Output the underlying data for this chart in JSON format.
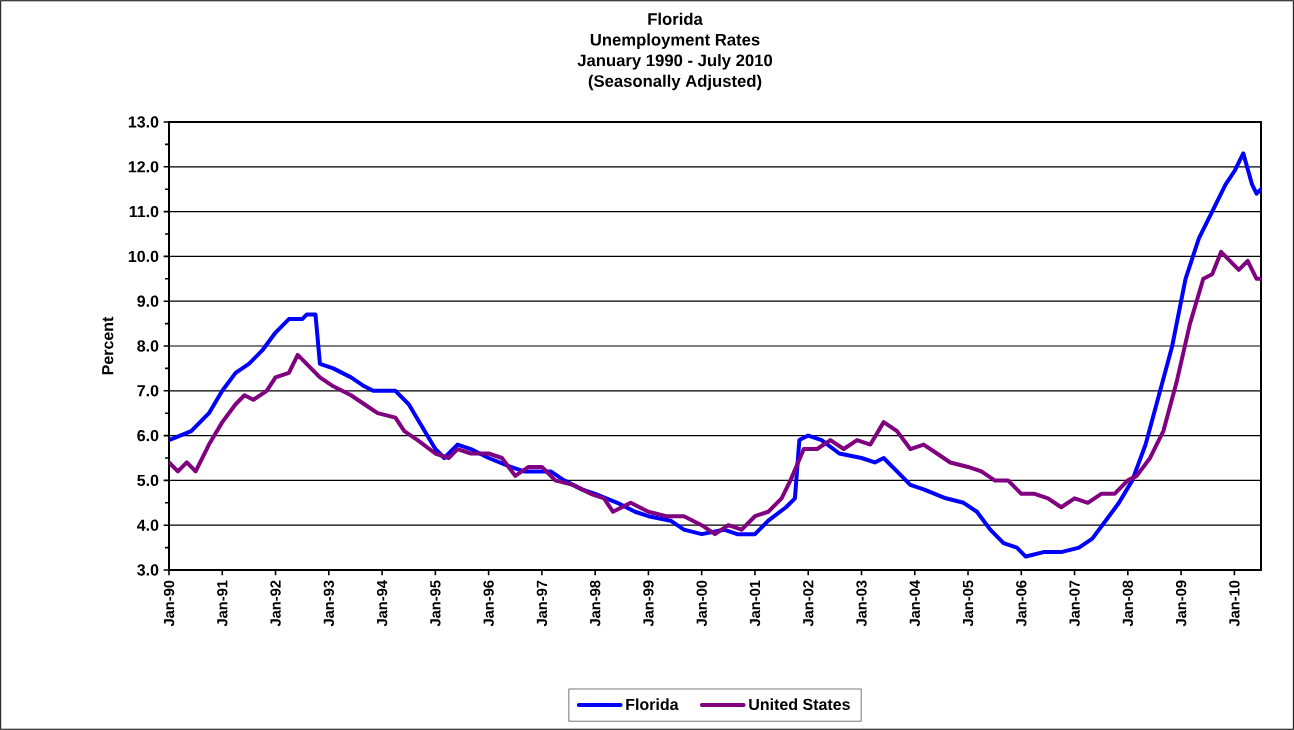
{
  "chart_data": {
    "type": "line",
    "title": "Florida",
    "subtitle": "Unemployment Rates",
    "annotations": [
      "January 1990 - July 2010",
      "(Seasonally Adjusted)"
    ],
    "ylabel": "Percent",
    "xlim": [
      "1990-01",
      "2010-07"
    ],
    "xticks": [
      {
        "value": "1990-01",
        "label": "Jan-90"
      },
      {
        "value": "1991-01",
        "label": "Jan-91"
      },
      {
        "value": "1992-01",
        "label": "Jan-92"
      },
      {
        "value": "1993-01",
        "label": "Jan-93"
      },
      {
        "value": "1994-01",
        "label": "Jan-94"
      },
      {
        "value": "1995-01",
        "label": "Jan-95"
      },
      {
        "value": "1996-01",
        "label": "Jan-96"
      },
      {
        "value": "1997-01",
        "label": "Jan-97"
      },
      {
        "value": "1998-01",
        "label": "Jan-98"
      },
      {
        "value": "1999-01",
        "label": "Jan-99"
      },
      {
        "value": "2000-01",
        "label": "Jan-00"
      },
      {
        "value": "2001-01",
        "label": "Jan-01"
      },
      {
        "value": "2002-01",
        "label": "Jan-02"
      },
      {
        "value": "2003-01",
        "label": "Jan-03"
      },
      {
        "value": "2004-01",
        "label": "Jan-04"
      },
      {
        "value": "2005-01",
        "label": "Jan-05"
      },
      {
        "value": "2006-01",
        "label": "Jan-06"
      },
      {
        "value": "2007-01",
        "label": "Jan-07"
      },
      {
        "value": "2008-01",
        "label": "Jan-08"
      },
      {
        "value": "2009-01",
        "label": "Jan-09"
      },
      {
        "value": "2010-01",
        "label": "Jan-10"
      }
    ],
    "ylim": [
      3,
      13
    ],
    "yticks": [
      {
        "value": 3,
        "label": "3.0"
      },
      {
        "value": 4,
        "label": "4.0"
      },
      {
        "value": 5,
        "label": "5.0"
      },
      {
        "value": 6,
        "label": "6.0"
      },
      {
        "value": 7,
        "label": "7.0"
      },
      {
        "value": 8,
        "label": "8.0"
      },
      {
        "value": 9,
        "label": "9.0"
      },
      {
        "value": 10,
        "label": "10.0"
      },
      {
        "value": 11,
        "label": "11.0"
      },
      {
        "value": 12,
        "label": "12.0"
      },
      {
        "value": 13,
        "label": "13.0"
      }
    ],
    "grid": "y",
    "legend": "bottom",
    "marker": "none",
    "line_style": "solid",
    "series": [
      {
        "name": "Florida",
        "color": "#0000ff",
        "x": [
          "1990-01",
          "1990-06",
          "1990-10",
          "1991-01",
          "1991-04",
          "1991-07",
          "1991-10",
          "1992-01",
          "1992-04",
          "1992-07",
          "1992-08",
          "1992-10",
          "1992-11",
          "1993-02",
          "1993-06",
          "1993-09",
          "1993-11",
          "1994-04",
          "1994-07",
          "1994-10",
          "1995-01",
          "1995-03",
          "1995-06",
          "1995-09",
          "1996-01",
          "1996-06",
          "1996-09",
          "1997-03",
          "1997-06",
          "1997-10",
          "1998-01",
          "1998-06",
          "1998-10",
          "1999-01",
          "1999-06",
          "1999-09",
          "2000-01",
          "2000-06",
          "2000-09",
          "2001-01",
          "2001-04",
          "2001-08",
          "2001-10",
          "2001-11",
          "2002-01",
          "2002-04",
          "2002-08",
          "2003-01",
          "2003-04",
          "2003-06",
          "2003-09",
          "2003-12",
          "2004-03",
          "2004-08",
          "2004-12",
          "2005-03",
          "2005-06",
          "2005-09",
          "2005-12",
          "2006-02",
          "2006-06",
          "2006-10",
          "2007-02",
          "2007-05",
          "2007-08",
          "2007-11",
          "2008-02",
          "2008-05",
          "2008-08",
          "2008-11",
          "2009-02",
          "2009-05",
          "2009-08",
          "2009-11",
          "2010-01",
          "2010-03",
          "2010-05",
          "2010-06",
          "2010-07"
        ],
        "values": [
          5.9,
          6.1,
          6.5,
          7.0,
          7.4,
          7.6,
          7.9,
          8.3,
          8.6,
          8.6,
          8.7,
          8.7,
          7.6,
          7.5,
          7.3,
          7.1,
          7.0,
          7.0,
          6.7,
          6.2,
          5.7,
          5.5,
          5.8,
          5.7,
          5.5,
          5.3,
          5.2,
          5.2,
          5.0,
          4.8,
          4.7,
          4.5,
          4.3,
          4.2,
          4.1,
          3.9,
          3.8,
          3.9,
          3.8,
          3.8,
          4.1,
          4.4,
          4.6,
          5.9,
          6.0,
          5.9,
          5.6,
          5.5,
          5.4,
          5.5,
          5.2,
          4.9,
          4.8,
          4.6,
          4.5,
          4.3,
          3.9,
          3.6,
          3.5,
          3.3,
          3.4,
          3.4,
          3.5,
          3.7,
          4.1,
          4.5,
          5.0,
          5.8,
          6.9,
          8.0,
          9.5,
          10.4,
          11.0,
          11.6,
          11.9,
          12.3,
          11.6,
          11.4,
          11.5
        ]
      },
      {
        "name": "United States",
        "color": "#800080",
        "x": [
          "1990-01",
          "1990-03",
          "1990-05",
          "1990-07",
          "1990-10",
          "1991-01",
          "1991-04",
          "1991-06",
          "1991-08",
          "1991-11",
          "1992-01",
          "1992-04",
          "1992-06",
          "1992-09",
          "1992-11",
          "1993-02",
          "1993-06",
          "1993-09",
          "1993-12",
          "1994-04",
          "1994-06",
          "1994-09",
          "1995-01",
          "1995-04",
          "1995-06",
          "1995-09",
          "1996-01",
          "1996-04",
          "1996-07",
          "1996-10",
          "1997-01",
          "1997-04",
          "1997-08",
          "1997-12",
          "1998-03",
          "1998-05",
          "1998-09",
          "1999-01",
          "1999-05",
          "1999-09",
          "2000-01",
          "2000-04",
          "2000-07",
          "2000-10",
          "2001-01",
          "2001-04",
          "2001-07",
          "2001-09",
          "2001-12",
          "2002-03",
          "2002-06",
          "2002-09",
          "2002-12",
          "2003-03",
          "2003-06",
          "2003-09",
          "2003-12",
          "2004-03",
          "2004-06",
          "2004-09",
          "2005-01",
          "2005-04",
          "2005-07",
          "2005-10",
          "2006-01",
          "2006-04",
          "2006-07",
          "2006-10",
          "2007-01",
          "2007-04",
          "2007-07",
          "2007-10",
          "2008-01",
          "2008-03",
          "2008-06",
          "2008-09",
          "2008-12",
          "2009-03",
          "2009-06",
          "2009-08",
          "2009-10",
          "2009-12",
          "2010-02",
          "2010-04",
          "2010-06",
          "2010-07"
        ],
        "values": [
          5.4,
          5.2,
          5.4,
          5.2,
          5.8,
          6.3,
          6.7,
          6.9,
          6.8,
          7.0,
          7.3,
          7.4,
          7.8,
          7.5,
          7.3,
          7.1,
          6.9,
          6.7,
          6.5,
          6.4,
          6.1,
          5.9,
          5.6,
          5.5,
          5.7,
          5.6,
          5.6,
          5.5,
          5.1,
          5.3,
          5.3,
          5.0,
          4.9,
          4.7,
          4.6,
          4.3,
          4.5,
          4.3,
          4.2,
          4.2,
          4.0,
          3.8,
          4.0,
          3.9,
          4.2,
          4.3,
          4.6,
          5.0,
          5.7,
          5.7,
          5.9,
          5.7,
          5.9,
          5.8,
          6.3,
          6.1,
          5.7,
          5.8,
          5.6,
          5.4,
          5.3,
          5.2,
          5.0,
          5.0,
          4.7,
          4.7,
          4.6,
          4.4,
          4.6,
          4.5,
          4.7,
          4.7,
          5.0,
          5.1,
          5.5,
          6.1,
          7.2,
          8.5,
          9.5,
          9.6,
          10.1,
          9.9,
          9.7,
          9.9,
          9.5,
          9.5
        ]
      }
    ]
  }
}
